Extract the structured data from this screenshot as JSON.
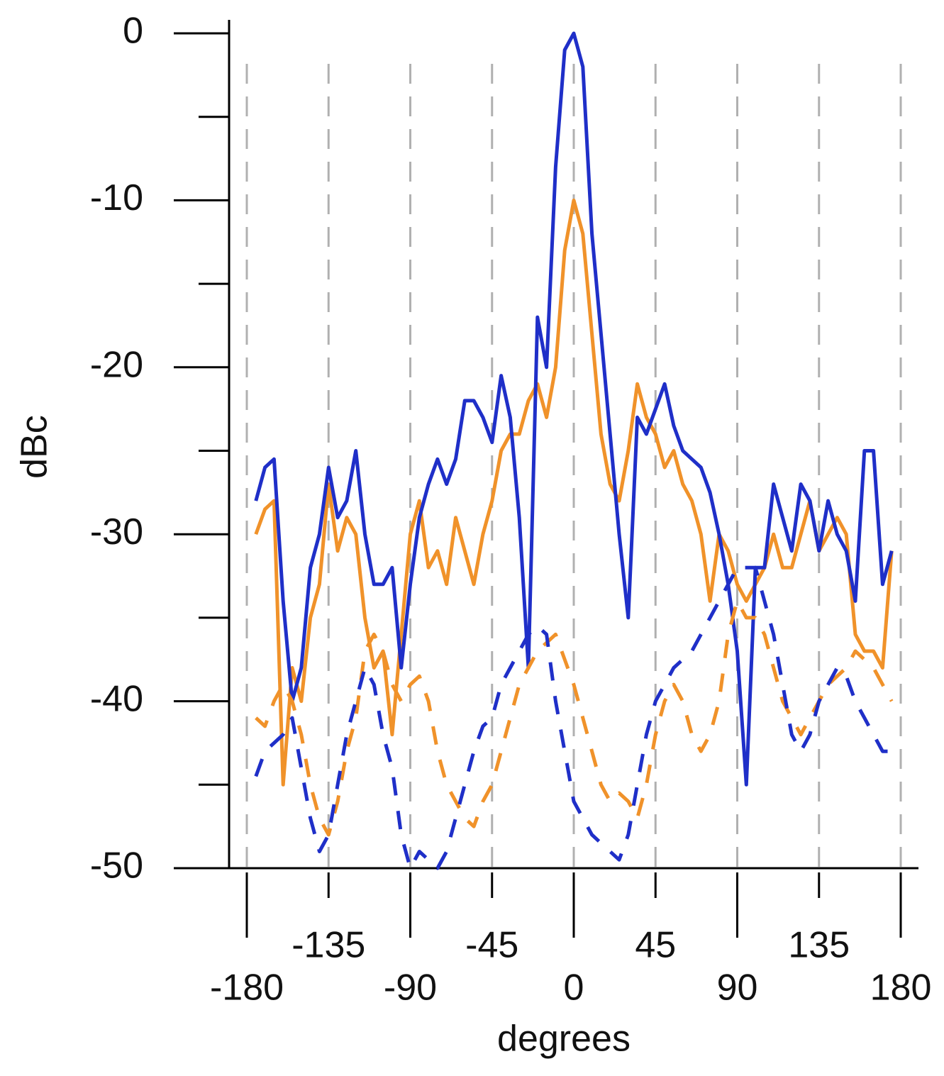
{
  "chart_data": {
    "type": "line",
    "x_label": "degrees",
    "y_label": "dBc",
    "x": [
      -175,
      -170,
      -165,
      -160,
      -155,
      -150,
      -145,
      -140,
      -135,
      -130,
      -125,
      -120,
      -115,
      -110,
      -105,
      -100,
      -95,
      -90,
      -85,
      -80,
      -75,
      -70,
      -65,
      -60,
      -55,
      -50,
      -45,
      -40,
      -35,
      -30,
      -25,
      -20,
      -15,
      -10,
      -5,
      0,
      5,
      10,
      15,
      20,
      25,
      30,
      35,
      40,
      45,
      50,
      55,
      60,
      65,
      70,
      75,
      80,
      85,
      90,
      95,
      100,
      105,
      110,
      115,
      120,
      125,
      130,
      135,
      140,
      145,
      150,
      155,
      160,
      165,
      170,
      175
    ],
    "series": [
      {
        "color": "#f0922a",
        "dash": false,
        "values": [
          -30,
          -28.5,
          -28,
          -45,
          -38,
          -40,
          -35,
          -33,
          -27,
          -31,
          -29,
          -30,
          -35,
          -38,
          -37,
          -42,
          -36,
          -30,
          -28,
          -32,
          -31,
          -33,
          -29,
          -31,
          -33,
          -30,
          -28,
          -25,
          -24,
          -24,
          -22,
          -21,
          -23,
          -20,
          -13,
          -10,
          -12,
          -18,
          -24,
          -27,
          -28,
          -25,
          -21,
          -23,
          -24,
          -26,
          -25,
          -27,
          -28,
          -30,
          -34,
          -30,
          -31,
          -33,
          -34,
          -33,
          -32,
          -30,
          -32,
          -32,
          -30,
          -28,
          -31,
          -30,
          -29,
          -30,
          -36,
          -37,
          -37,
          -38,
          -31
        ]
      },
      {
        "color": "#1f2fc8",
        "dash": false,
        "values": [
          -28,
          -26,
          -25.5,
          -34,
          -40,
          -38,
          -32,
          -30,
          -26,
          -29,
          -28,
          -25,
          -30,
          -33,
          -33,
          -32,
          -38,
          -33,
          -29,
          -27,
          -25.5,
          -27,
          -25.5,
          -22,
          -22,
          -23,
          -24.5,
          -20.5,
          -23,
          -29,
          -38,
          -17,
          -20,
          -8,
          -1,
          0,
          -2,
          -12,
          -18,
          -24,
          -30,
          -35,
          -23,
          -24,
          -22.5,
          -21,
          -23.5,
          -25,
          -25.5,
          -26,
          -27.5,
          -30,
          -33,
          -37,
          -45,
          -32,
          -32,
          -27,
          -29,
          -31,
          -27,
          -28,
          -31,
          -28,
          -30,
          -31,
          -34,
          -25,
          -25,
          -33,
          -31
        ]
      },
      {
        "color": "#f0922a",
        "dash": true,
        "values": [
          -41,
          -41.5,
          -40,
          -39,
          -40,
          -42,
          -45,
          -47,
          -48,
          -46,
          -43,
          -41,
          -37,
          -36,
          -37,
          -39,
          -40,
          -39,
          -38.5,
          -40,
          -43,
          -45,
          -46,
          -47,
          -47.5,
          -46,
          -45,
          -43,
          -41,
          -39,
          -38,
          -37,
          -36.5,
          -36,
          -37.5,
          -39,
          -41,
          -43,
          -45,
          -46,
          -45.5,
          -46,
          -47,
          -45,
          -42,
          -40,
          -39,
          -40,
          -42,
          -43,
          -42,
          -40,
          -36,
          -34,
          -35,
          -35,
          -36,
          -38,
          -40,
          -41,
          -42,
          -41,
          -40,
          -39,
          -38.5,
          -38,
          -37,
          -37.5,
          -38,
          -39,
          -40
        ]
      },
      {
        "color": "#1f2fc8",
        "dash": true,
        "values": [
          -44.5,
          -43,
          -42.5,
          -42,
          -41,
          -44,
          -47,
          -49,
          -48,
          -45,
          -42,
          -40,
          -38,
          -39,
          -42,
          -44,
          -48,
          -50,
          -49,
          -49.5,
          -50,
          -49,
          -47,
          -45,
          -43,
          -41.5,
          -41,
          -39,
          -38,
          -37,
          -36,
          -35.5,
          -36,
          -40,
          -43,
          -46,
          -47,
          -48,
          -48.5,
          -49,
          -49.5,
          -48,
          -45,
          -42,
          -40,
          -39,
          -38,
          -37.5,
          -37,
          -36,
          -35,
          -34,
          -33,
          -32,
          -32,
          -32,
          -34,
          -36,
          -39,
          -42,
          -43,
          -42,
          -40,
          -39,
          -38,
          -38.5,
          -40,
          -41,
          -42,
          -43,
          -43
        ]
      }
    ],
    "xlim": [
      -180,
      180
    ],
    "xticks": [
      -180,
      -135,
      -90,
      -45,
      0,
      45,
      90,
      135,
      180
    ],
    "ylim": [
      -50,
      0
    ],
    "yticks": [
      0,
      -10,
      -20,
      -30,
      -40,
      -50
    ],
    "yminor_ticks": [
      -5,
      -15,
      -25,
      -35,
      -45
    ],
    "grid": true
  }
}
